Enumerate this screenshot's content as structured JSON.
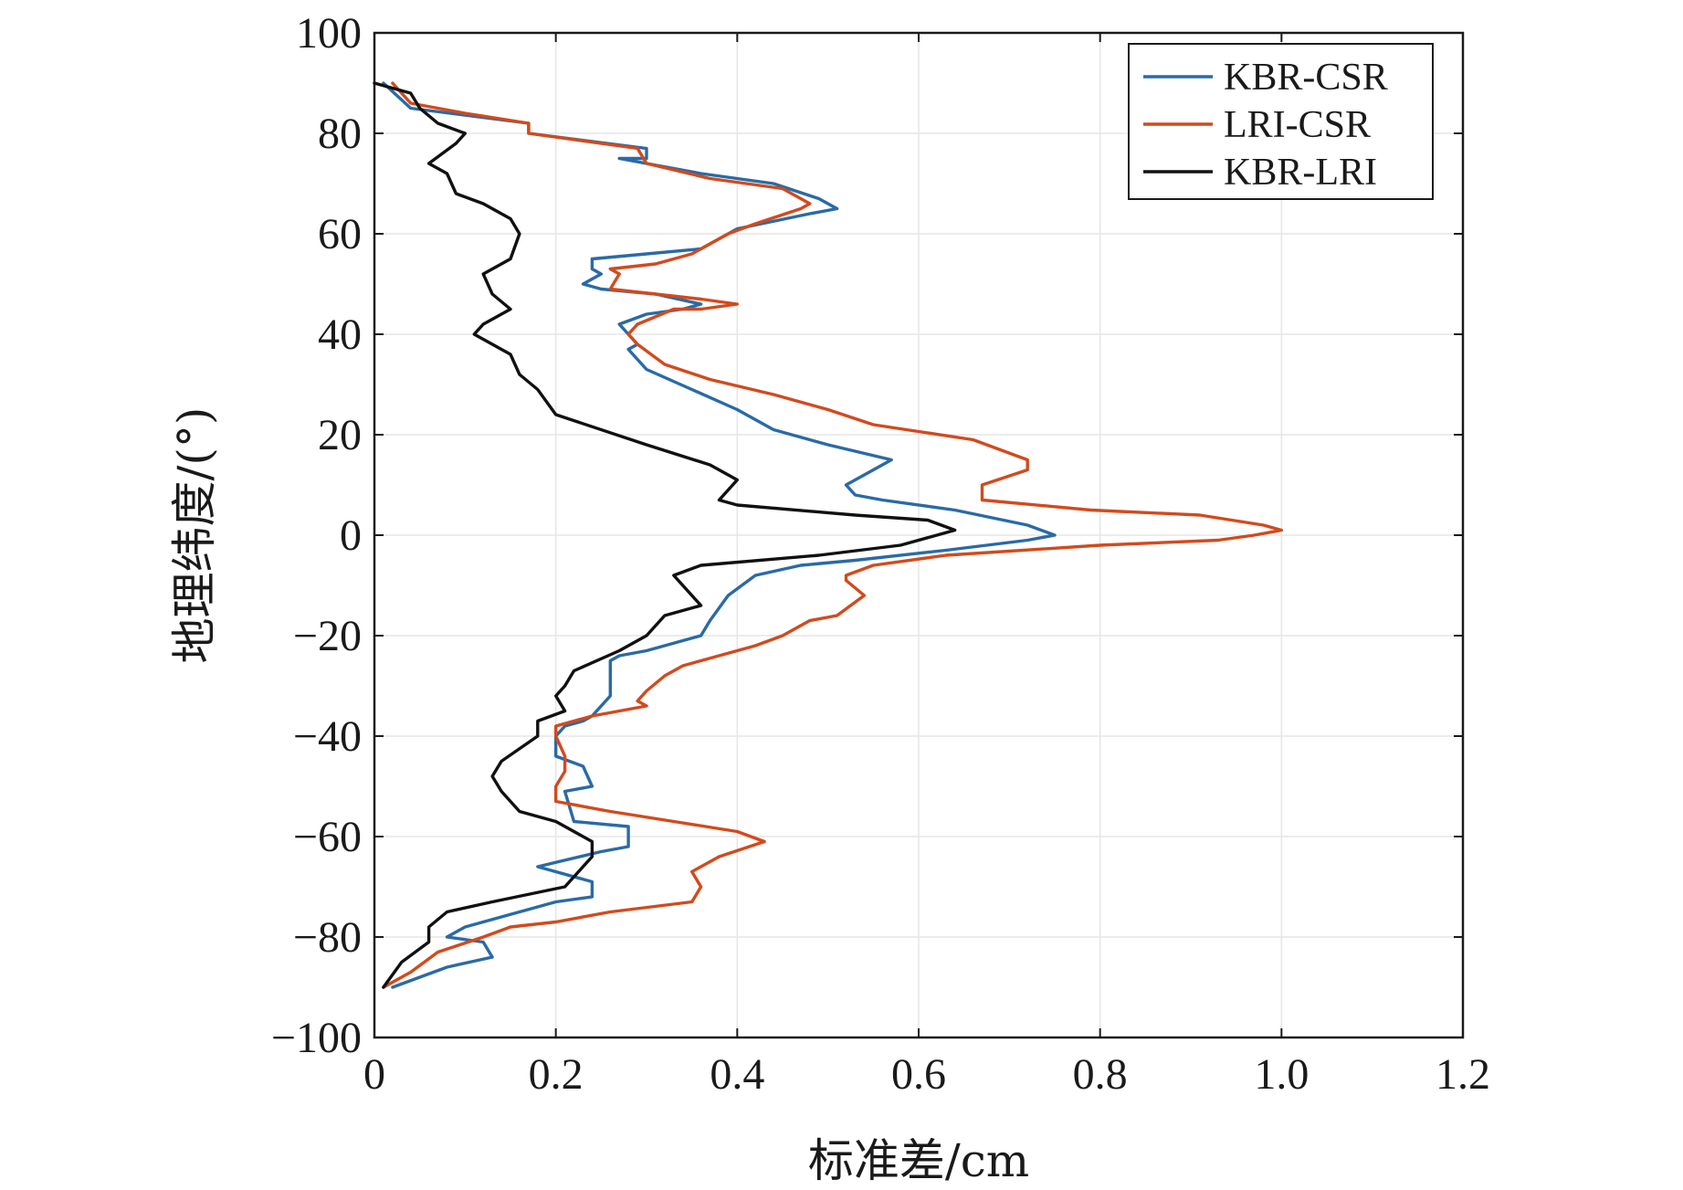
{
  "chart_data": {
    "type": "line",
    "title": "",
    "xlabel": "标准差/cm",
    "ylabel": "地理纬度/(°)",
    "xlim": [
      0,
      1.2
    ],
    "ylim": [
      -100,
      100
    ],
    "xticks": [
      0,
      0.2,
      0.4,
      0.6,
      0.8,
      1.0,
      1.2
    ],
    "xtick_labels": [
      "0",
      "0.2",
      "0.4",
      "0.6",
      "0.8",
      "1.0",
      "1.2"
    ],
    "yticks": [
      100,
      80,
      60,
      40,
      20,
      0,
      -20,
      -40,
      -60,
      -80,
      -100
    ],
    "ytick_labels": [
      "100",
      "80",
      "60",
      "40",
      "20",
      "0",
      "−20",
      "−40",
      "−60",
      "−80",
      "−100"
    ],
    "grid": true,
    "legend_location": "top-right",
    "series": [
      {
        "name": "KBR-CSR",
        "color": "#2a6aa6",
        "points": [
          [
            0.01,
            90
          ],
          [
            0.04,
            85
          ],
          [
            0.17,
            82
          ],
          [
            0.17,
            80
          ],
          [
            0.3,
            77
          ],
          [
            0.3,
            75
          ],
          [
            0.27,
            75
          ],
          [
            0.36,
            72
          ],
          [
            0.44,
            70
          ],
          [
            0.49,
            67
          ],
          [
            0.51,
            65
          ],
          [
            0.48,
            64
          ],
          [
            0.4,
            61
          ],
          [
            0.36,
            57
          ],
          [
            0.3,
            56
          ],
          [
            0.24,
            55
          ],
          [
            0.24,
            53
          ],
          [
            0.25,
            52
          ],
          [
            0.23,
            50
          ],
          [
            0.25,
            49
          ],
          [
            0.31,
            48
          ],
          [
            0.36,
            46
          ],
          [
            0.34,
            45
          ],
          [
            0.3,
            44
          ],
          [
            0.27,
            42
          ],
          [
            0.28,
            40
          ],
          [
            0.29,
            38
          ],
          [
            0.28,
            37
          ],
          [
            0.3,
            33
          ],
          [
            0.35,
            29
          ],
          [
            0.4,
            25
          ],
          [
            0.44,
            21
          ],
          [
            0.5,
            18
          ],
          [
            0.57,
            15
          ],
          [
            0.54,
            12
          ],
          [
            0.52,
            10
          ],
          [
            0.53,
            8
          ],
          [
            0.56,
            7
          ],
          [
            0.64,
            5
          ],
          [
            0.72,
            2
          ],
          [
            0.75,
            0
          ],
          [
            0.72,
            -1
          ],
          [
            0.63,
            -3
          ],
          [
            0.53,
            -5
          ],
          [
            0.47,
            -6
          ],
          [
            0.42,
            -8
          ],
          [
            0.39,
            -12
          ],
          [
            0.37,
            -17
          ],
          [
            0.36,
            -20
          ],
          [
            0.3,
            -23
          ],
          [
            0.27,
            -24
          ],
          [
            0.26,
            -25
          ],
          [
            0.26,
            -32
          ],
          [
            0.24,
            -36
          ],
          [
            0.23,
            -37
          ],
          [
            0.21,
            -38
          ],
          [
            0.2,
            -40
          ],
          [
            0.2,
            -44
          ],
          [
            0.23,
            -46
          ],
          [
            0.24,
            -50
          ],
          [
            0.21,
            -51
          ],
          [
            0.22,
            -57
          ],
          [
            0.28,
            -58
          ],
          [
            0.28,
            -62
          ],
          [
            0.25,
            -63
          ],
          [
            0.18,
            -66
          ],
          [
            0.24,
            -69
          ],
          [
            0.24,
            -72
          ],
          [
            0.2,
            -73
          ],
          [
            0.16,
            -75
          ],
          [
            0.1,
            -78
          ],
          [
            0.08,
            -80
          ],
          [
            0.12,
            -81
          ],
          [
            0.13,
            -84
          ],
          [
            0.08,
            -86
          ],
          [
            0.02,
            -90
          ]
        ]
      },
      {
        "name": "LRI-CSR",
        "color": "#d24a1d",
        "points": [
          [
            0.02,
            90
          ],
          [
            0.04,
            86
          ],
          [
            0.1,
            84
          ],
          [
            0.17,
            82
          ],
          [
            0.17,
            80
          ],
          [
            0.29,
            77
          ],
          [
            0.3,
            74
          ],
          [
            0.37,
            71
          ],
          [
            0.45,
            69
          ],
          [
            0.48,
            66
          ],
          [
            0.47,
            65
          ],
          [
            0.42,
            62
          ],
          [
            0.39,
            60
          ],
          [
            0.35,
            56
          ],
          [
            0.31,
            54
          ],
          [
            0.26,
            53
          ],
          [
            0.27,
            52
          ],
          [
            0.26,
            49
          ],
          [
            0.31,
            48
          ],
          [
            0.36,
            47
          ],
          [
            0.4,
            46
          ],
          [
            0.36,
            45
          ],
          [
            0.33,
            45
          ],
          [
            0.29,
            42
          ],
          [
            0.28,
            40
          ],
          [
            0.29,
            38
          ],
          [
            0.32,
            34
          ],
          [
            0.37,
            31
          ],
          [
            0.44,
            28
          ],
          [
            0.5,
            25
          ],
          [
            0.55,
            22
          ],
          [
            0.66,
            19
          ],
          [
            0.72,
            15
          ],
          [
            0.72,
            13
          ],
          [
            0.67,
            10
          ],
          [
            0.67,
            7
          ],
          [
            0.79,
            5
          ],
          [
            0.91,
            4
          ],
          [
            0.98,
            2
          ],
          [
            1.0,
            1
          ],
          [
            0.97,
            0
          ],
          [
            0.93,
            -1
          ],
          [
            0.8,
            -2
          ],
          [
            0.63,
            -4
          ],
          [
            0.55,
            -6
          ],
          [
            0.52,
            -8
          ],
          [
            0.52,
            -9
          ],
          [
            0.54,
            -12
          ],
          [
            0.51,
            -16
          ],
          [
            0.48,
            -17
          ],
          [
            0.45,
            -20
          ],
          [
            0.42,
            -22
          ],
          [
            0.34,
            -26
          ],
          [
            0.32,
            -28
          ],
          [
            0.3,
            -31
          ],
          [
            0.29,
            -33
          ],
          [
            0.3,
            -34
          ],
          [
            0.24,
            -36
          ],
          [
            0.2,
            -38
          ],
          [
            0.2,
            -40
          ],
          [
            0.21,
            -44
          ],
          [
            0.21,
            -47
          ],
          [
            0.2,
            -50
          ],
          [
            0.2,
            -53
          ],
          [
            0.26,
            -55
          ],
          [
            0.33,
            -57
          ],
          [
            0.4,
            -59
          ],
          [
            0.43,
            -61
          ],
          [
            0.38,
            -64
          ],
          [
            0.35,
            -67
          ],
          [
            0.36,
            -70
          ],
          [
            0.35,
            -73
          ],
          [
            0.26,
            -75
          ],
          [
            0.2,
            -77
          ],
          [
            0.15,
            -78
          ],
          [
            0.12,
            -80
          ],
          [
            0.07,
            -83
          ],
          [
            0.04,
            -87
          ],
          [
            0.01,
            -90
          ]
        ]
      },
      {
        "name": "KBR-LRI",
        "color": "#111111",
        "points": [
          [
            0.0,
            90
          ],
          [
            0.04,
            88
          ],
          [
            0.05,
            85
          ],
          [
            0.07,
            82
          ],
          [
            0.1,
            80
          ],
          [
            0.09,
            78
          ],
          [
            0.06,
            74
          ],
          [
            0.08,
            72
          ],
          [
            0.09,
            68
          ],
          [
            0.12,
            66
          ],
          [
            0.15,
            63
          ],
          [
            0.16,
            60
          ],
          [
            0.15,
            55
          ],
          [
            0.12,
            52
          ],
          [
            0.13,
            48
          ],
          [
            0.15,
            45
          ],
          [
            0.12,
            42
          ],
          [
            0.11,
            40
          ],
          [
            0.15,
            36
          ],
          [
            0.16,
            32
          ],
          [
            0.18,
            29
          ],
          [
            0.2,
            24
          ],
          [
            0.3,
            18
          ],
          [
            0.37,
            14
          ],
          [
            0.39,
            12
          ],
          [
            0.4,
            11
          ],
          [
            0.38,
            7
          ],
          [
            0.4,
            6
          ],
          [
            0.53,
            4
          ],
          [
            0.61,
            3
          ],
          [
            0.64,
            1
          ],
          [
            0.58,
            -2
          ],
          [
            0.49,
            -4
          ],
          [
            0.36,
            -6
          ],
          [
            0.33,
            -8
          ],
          [
            0.34,
            -10
          ],
          [
            0.36,
            -14
          ],
          [
            0.32,
            -16
          ],
          [
            0.3,
            -20
          ],
          [
            0.27,
            -23
          ],
          [
            0.22,
            -27
          ],
          [
            0.21,
            -30
          ],
          [
            0.2,
            -32
          ],
          [
            0.21,
            -35
          ],
          [
            0.18,
            -37
          ],
          [
            0.18,
            -40
          ],
          [
            0.14,
            -45
          ],
          [
            0.13,
            -48
          ],
          [
            0.14,
            -51
          ],
          [
            0.16,
            -55
          ],
          [
            0.2,
            -57
          ],
          [
            0.24,
            -61
          ],
          [
            0.24,
            -64
          ],
          [
            0.21,
            -70
          ],
          [
            0.13,
            -73
          ],
          [
            0.08,
            -75
          ],
          [
            0.06,
            -78
          ],
          [
            0.06,
            -81
          ],
          [
            0.03,
            -85
          ],
          [
            0.01,
            -90
          ]
        ]
      }
    ]
  }
}
